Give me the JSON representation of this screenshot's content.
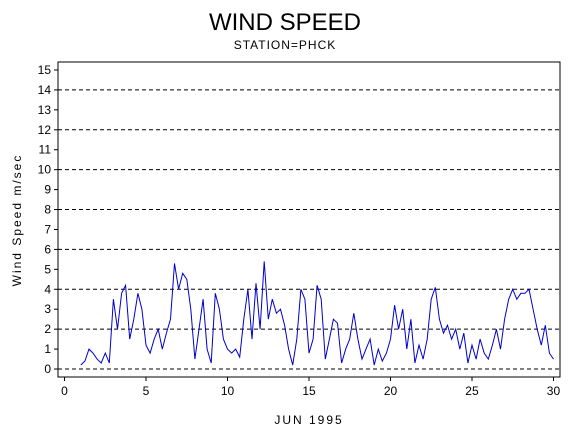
{
  "chart_data": {
    "type": "line",
    "title": "WIND SPEED",
    "subtitle": "STATION=PHCK",
    "x_label": "JUN 1995",
    "y_label": "Wind Speed m/sec",
    "xlim": [
      -0.4,
      30.4
    ],
    "ylim": [
      -0.4,
      15.4
    ],
    "xticks": [
      0,
      5,
      10,
      15,
      20,
      25,
      30
    ],
    "yticks": [
      0,
      1,
      2,
      3,
      4,
      5,
      6,
      7,
      8,
      9,
      10,
      11,
      12,
      13,
      14,
      15
    ],
    "grid_lines": [
      0,
      2,
      4,
      6,
      8,
      10,
      12,
      14
    ],
    "x": [
      1.0,
      1.25,
      1.5,
      1.75,
      2.0,
      2.25,
      2.5,
      2.75,
      3.0,
      3.25,
      3.5,
      3.75,
      4.0,
      4.25,
      4.5,
      4.75,
      5.0,
      5.25,
      5.5,
      5.75,
      6.0,
      6.25,
      6.5,
      6.75,
      7.0,
      7.25,
      7.5,
      7.75,
      8.0,
      8.25,
      8.5,
      8.75,
      9.0,
      9.25,
      9.5,
      9.75,
      10.0,
      10.25,
      10.5,
      10.75,
      11.0,
      11.25,
      11.5,
      11.75,
      12.0,
      12.25,
      12.5,
      12.75,
      13.0,
      13.25,
      13.5,
      13.75,
      14.0,
      14.25,
      14.5,
      14.75,
      15.0,
      15.25,
      15.5,
      15.75,
      16.0,
      16.25,
      16.5,
      16.75,
      17.0,
      17.25,
      17.5,
      17.75,
      18.0,
      18.25,
      18.5,
      18.75,
      19.0,
      19.25,
      19.5,
      19.75,
      20.0,
      20.25,
      20.5,
      20.75,
      21.0,
      21.25,
      21.5,
      21.75,
      22.0,
      22.25,
      22.5,
      22.75,
      23.0,
      23.25,
      23.5,
      23.75,
      24.0,
      24.25,
      24.5,
      24.75,
      25.0,
      25.25,
      25.5,
      25.75,
      26.0,
      26.25,
      26.5,
      26.75,
      27.0,
      27.25,
      27.5,
      27.75,
      28.0,
      28.25,
      28.5,
      28.75,
      29.0,
      29.25,
      29.5,
      29.75,
      30.0
    ],
    "series": [
      {
        "name": "Wind Speed",
        "color": "#0000cc",
        "values": [
          0.2,
          0.4,
          1.0,
          0.8,
          0.5,
          0.3,
          0.8,
          0.3,
          3.5,
          2.0,
          3.8,
          4.2,
          1.5,
          2.5,
          3.8,
          3.0,
          1.2,
          0.8,
          1.5,
          2.0,
          1.0,
          1.8,
          2.5,
          5.3,
          4.0,
          4.8,
          4.5,
          3.0,
          0.5,
          2.0,
          3.5,
          1.0,
          0.3,
          3.8,
          3.0,
          1.5,
          1.0,
          0.8,
          1.0,
          0.6,
          2.5,
          4.0,
          1.5,
          4.3,
          2.0,
          5.4,
          2.5,
          3.5,
          2.8,
          3.0,
          2.2,
          1.0,
          0.2,
          1.5,
          4.0,
          3.5,
          0.8,
          1.5,
          4.2,
          3.5,
          0.5,
          1.5,
          2.5,
          2.3,
          0.3,
          1.0,
          1.5,
          2.8,
          1.5,
          0.5,
          1.0,
          1.5,
          0.2,
          1.0,
          0.4,
          0.8,
          1.5,
          3.2,
          2.0,
          3.0,
          1.0,
          2.5,
          0.3,
          1.2,
          0.5,
          1.5,
          3.5,
          4.1,
          2.5,
          1.8,
          2.2,
          1.5,
          2.0,
          1.0,
          1.8,
          0.3,
          1.2,
          0.5,
          1.5,
          0.8,
          0.5,
          1.2,
          2.0,
          1.0,
          2.5,
          3.5,
          4.0,
          3.5,
          3.8,
          3.8,
          4.0,
          3.0,
          2.0,
          1.2,
          2.2,
          0.8,
          0.5
        ]
      }
    ]
  }
}
